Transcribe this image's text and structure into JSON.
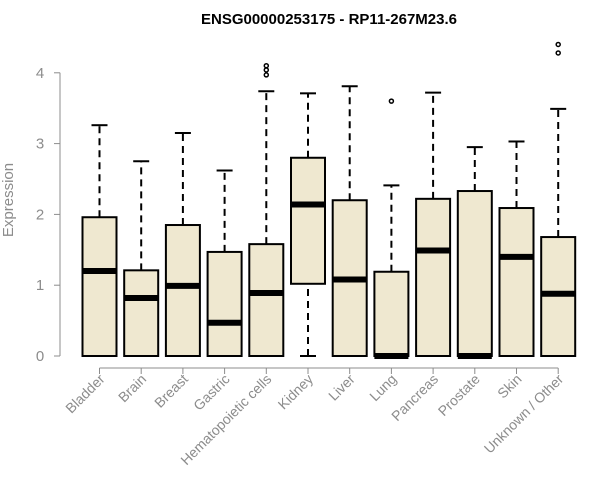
{
  "chart_data": {
    "type": "boxplot",
    "title": "ENSG00000253175 - RP11-267M23.6",
    "xlabel": "",
    "ylabel": "Expression",
    "ylim": [
      0,
      4.5
    ],
    "yticks": [
      0,
      1,
      2,
      3,
      4
    ],
    "box_color": "#efe8d0",
    "categories": [
      "Bladder",
      "Brain",
      "Breast",
      "Gastric",
      "Hematopoietic cells",
      "Kidney",
      "Liver",
      "Lung",
      "Pancreas",
      "Prostate",
      "Skin",
      "Unknown / Other"
    ],
    "boxes": [
      {
        "min": 0,
        "q1": 0,
        "median": 1.2,
        "q3": 1.96,
        "max": 3.26,
        "outliers": []
      },
      {
        "min": 0,
        "q1": 0,
        "median": 0.82,
        "q3": 1.21,
        "max": 2.75,
        "outliers": []
      },
      {
        "min": 0,
        "q1": 0,
        "median": 0.99,
        "q3": 1.85,
        "max": 3.15,
        "outliers": []
      },
      {
        "min": 0,
        "q1": 0,
        "median": 0.47,
        "q3": 1.47,
        "max": 2.62,
        "outliers": []
      },
      {
        "min": 0,
        "q1": 0,
        "median": 0.89,
        "q3": 1.58,
        "max": 3.74,
        "outliers": [
          3.97,
          4.04,
          4.1
        ]
      },
      {
        "min": 0,
        "q1": 1.02,
        "median": 2.14,
        "q3": 2.8,
        "max": 3.71,
        "outliers": []
      },
      {
        "min": 0,
        "q1": 0,
        "median": 1.08,
        "q3": 2.2,
        "max": 3.81,
        "outliers": []
      },
      {
        "min": 0,
        "q1": 0,
        "median": 0,
        "q3": 1.19,
        "max": 2.41,
        "outliers": [
          3.6
        ]
      },
      {
        "min": 0,
        "q1": 0,
        "median": 1.49,
        "q3": 2.22,
        "max": 3.72,
        "outliers": []
      },
      {
        "min": 0,
        "q1": 0,
        "median": 0,
        "q3": 2.33,
        "max": 2.95,
        "outliers": []
      },
      {
        "min": 0,
        "q1": 0,
        "median": 1.4,
        "q3": 2.09,
        "max": 3.03,
        "outliers": []
      },
      {
        "min": 0,
        "q1": 0,
        "median": 0.88,
        "q3": 1.68,
        "max": 3.49,
        "outliers": [
          4.28,
          4.4
        ]
      }
    ]
  }
}
